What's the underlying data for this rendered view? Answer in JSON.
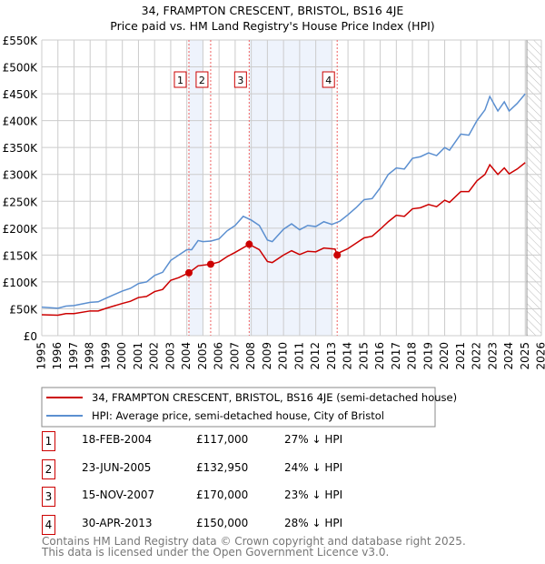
{
  "chart_data": {
    "type": "line",
    "title": "34, FRAMPTON CRESCENT, BRISTOL, BS16 4JE",
    "subtitle": "Price paid vs. HM Land Registry's House Price Index (HPI)",
    "xlim": [
      1995,
      2026
    ],
    "ylim": [
      0,
      550000
    ],
    "x_ticks": [
      "1995",
      "1996",
      "1997",
      "1998",
      "1999",
      "2000",
      "2001",
      "2002",
      "2003",
      "2004",
      "2005",
      "2006",
      "2007",
      "2008",
      "2009",
      "2010",
      "2011",
      "2012",
      "2013",
      "2014",
      "2015",
      "2016",
      "2017",
      "2018",
      "2019",
      "2020",
      "2021",
      "2022",
      "2023",
      "2024",
      "2025",
      "2026"
    ],
    "y_ticks": [
      {
        "v": 0,
        "l": "£0"
      },
      {
        "v": 50000,
        "l": "£50K"
      },
      {
        "v": 100000,
        "l": "£100K"
      },
      {
        "v": 150000,
        "l": "£150K"
      },
      {
        "v": 200000,
        "l": "£200K"
      },
      {
        "v": 250000,
        "l": "£250K"
      },
      {
        "v": 300000,
        "l": "£300K"
      },
      {
        "v": 350000,
        "l": "£350K"
      },
      {
        "v": 400000,
        "l": "£400K"
      },
      {
        "v": 450000,
        "l": "£450K"
      },
      {
        "v": 500000,
        "l": "£500K"
      },
      {
        "v": 550000,
        "l": "£550K"
      }
    ],
    "grid": true,
    "shaded_periods": [
      [
        2004.13,
        2005.0
      ],
      [
        2007.87,
        2013.0
      ]
    ],
    "forecast_hatch_from": 2025.1,
    "series": [
      {
        "name": "34, FRAMPTON CRESCENT, BRISTOL, BS16 4JE (semi-detached house)",
        "color": "#cc0000",
        "x": [
          1995,
          1996,
          1996.5,
          1997,
          1998,
          1998.5,
          1999,
          2000,
          2000.5,
          2001,
          2001.5,
          2002,
          2002.5,
          2003,
          2003.5,
          2004.13,
          2004.7,
          2005.48,
          2006,
          2006.5,
          2007,
          2007.87,
          2008.5,
          2009,
          2009.3,
          2010,
          2010.5,
          2011,
          2011.5,
          2012,
          2012.5,
          2013.2,
          2013.33,
          2013.5,
          2014,
          2014.5,
          2015,
          2015.5,
          2016,
          2016.5,
          2017,
          2017.5,
          2018,
          2018.5,
          2019,
          2019.5,
          2020,
          2020.3,
          2021,
          2021.5,
          2022,
          2022.5,
          2022.8,
          2023.3,
          2023.7,
          2024,
          2024.5,
          2025
        ],
        "y": [
          39000,
          38000,
          41000,
          41000,
          46000,
          46000,
          51000,
          60000,
          64000,
          71000,
          73000,
          82000,
          86000,
          103000,
          108000,
          117000,
          130000,
          132950,
          137000,
          147000,
          155000,
          170000,
          160000,
          138000,
          136000,
          150000,
          158000,
          151000,
          157000,
          156000,
          163000,
          161000,
          150000,
          155000,
          162000,
          172000,
          182000,
          185000,
          198000,
          212000,
          224000,
          222000,
          236000,
          238000,
          244000,
          240000,
          252000,
          248000,
          268000,
          268000,
          288000,
          300000,
          318000,
          300000,
          312000,
          301000,
          310000,
          322000
        ]
      },
      {
        "name": "HPI: Average price, semi-detached house, City of Bristol",
        "color": "#5b8fd0",
        "x": [
          1995,
          1996,
          1996.5,
          1997,
          1998,
          1998.5,
          1999,
          2000,
          2000.5,
          2001,
          2001.5,
          2002,
          2002.5,
          2003,
          2003.5,
          2004,
          2004.3,
          2004.7,
          2005,
          2005.5,
          2006,
          2006.5,
          2007,
          2007.5,
          2008,
          2008.5,
          2009,
          2009.3,
          2010,
          2010.5,
          2011,
          2011.5,
          2012,
          2012.5,
          2013,
          2013.5,
          2014,
          2014.5,
          2015,
          2015.5,
          2016,
          2016.5,
          2017,
          2017.5,
          2018,
          2018.5,
          2019,
          2019.5,
          2020,
          2020.3,
          2021,
          2021.5,
          2022,
          2022.5,
          2022.8,
          2023.3,
          2023.7,
          2024,
          2024.5,
          2025
        ],
        "y": [
          53000,
          51000,
          55000,
          56000,
          62000,
          63000,
          70000,
          83000,
          88000,
          97000,
          100000,
          112000,
          118000,
          140000,
          150000,
          160000,
          160000,
          177000,
          175000,
          176000,
          180000,
          195000,
          205000,
          222000,
          215000,
          205000,
          178000,
          175000,
          198000,
          208000,
          197000,
          205000,
          203000,
          212000,
          207000,
          213000,
          225000,
          238000,
          253000,
          255000,
          275000,
          300000,
          312000,
          310000,
          330000,
          333000,
          340000,
          335000,
          350000,
          345000,
          375000,
          373000,
          400000,
          420000,
          445000,
          418000,
          435000,
          418000,
          432000,
          450000
        ]
      }
    ],
    "sales": [
      {
        "n": "1",
        "x": 2004.13,
        "y": 117000,
        "date": "18-FEB-2004",
        "price": "£117,000",
        "hpi": "27% ↓ HPI"
      },
      {
        "n": "2",
        "x": 2005.48,
        "y": 132950,
        "date": "23-JUN-2005",
        "price": "£132,950",
        "hpi": "24% ↓ HPI"
      },
      {
        "n": "3",
        "x": 2007.87,
        "y": 170000,
        "date": "15-NOV-2007",
        "price": "£170,000",
        "hpi": "23% ↓ HPI"
      },
      {
        "n": "4",
        "x": 2013.33,
        "y": 150000,
        "date": "30-APR-2013",
        "price": "£150,000",
        "hpi": "28% ↓ HPI"
      }
    ]
  },
  "footer": {
    "line1": "Contains HM Land Registry data © Crown copyright and database right 2025.",
    "line2": "This data is licensed under the Open Government Licence v3.0."
  }
}
